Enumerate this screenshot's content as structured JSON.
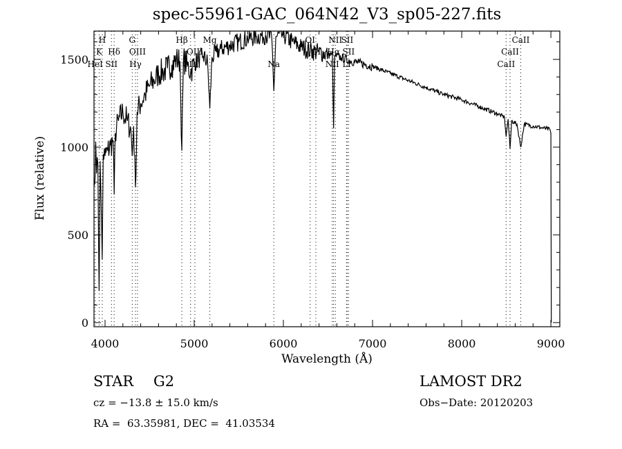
{
  "chart_data": {
    "type": "line",
    "title": "spec-55961-GAC_064N42_V3_sp05-227.fits",
    "xlabel": "Wavelength (Å)",
    "ylabel": "Flux (relative)",
    "xlim": [
      3876,
      9100
    ],
    "ylim": [
      0,
      1660
    ],
    "x_ticks": [
      4000,
      5000,
      6000,
      7000,
      8000,
      9000
    ],
    "y_ticks": [
      0,
      500,
      1000,
      1500
    ],
    "grid": false,
    "series": [
      {
        "name": "spectrum",
        "x": [
          3880,
          3895,
          3905,
          3920,
          3933,
          3945,
          3955,
          3968,
          3980,
          4000,
          4030,
          4060,
          4090,
          4102,
          4115,
          4150,
          4200,
          4250,
          4290,
          4305,
          4320,
          4341,
          4360,
          4400,
          4450,
          4500,
          4550,
          4600,
          4650,
          4700,
          4750,
          4800,
          4840,
          4861,
          4880,
          4920,
          4960,
          5000,
          5050,
          5100,
          5150,
          5175,
          5200,
          5250,
          5300,
          5400,
          5500,
          5600,
          5700,
          5800,
          5870,
          5893,
          5915,
          6000,
          6100,
          6200,
          6300,
          6400,
          6500,
          6550,
          6563,
          6575,
          6650,
          6750,
          6850,
          7000,
          7200,
          7400,
          7600,
          7800,
          8000,
          8200,
          8400,
          8480,
          8498,
          8520,
          8542,
          8560,
          8620,
          8662,
          8700,
          8800,
          8900,
          8990,
          9000,
          9005
        ],
        "y": [
          780,
          1030,
          850,
          900,
          180,
          920,
          700,
          360,
          960,
          950,
          980,
          1010,
          1040,
          730,
          1080,
          1150,
          1200,
          1150,
          1100,
          950,
          1120,
          770,
          1200,
          1250,
          1300,
          1350,
          1380,
          1420,
          1430,
          1450,
          1470,
          1500,
          1490,
          980,
          1500,
          1470,
          1430,
          1480,
          1500,
          1520,
          1480,
          1220,
          1510,
          1540,
          1560,
          1580,
          1600,
          1620,
          1630,
          1640,
          1620,
          1320,
          1630,
          1640,
          1600,
          1570,
          1550,
          1540,
          1530,
          1520,
          1110,
          1520,
          1510,
          1490,
          1480,
          1460,
          1420,
          1380,
          1340,
          1300,
          1270,
          1230,
          1190,
          1170,
          1060,
          1160,
          990,
          1150,
          1130,
          1000,
          1130,
          1120,
          1110,
          1100,
          1080,
          0
        ]
      }
    ],
    "line_markers": [
      {
        "label": "HeI",
        "wavelength": 3889,
        "row": 3
      },
      {
        "label": "K",
        "wavelength": 3934,
        "row": 2
      },
      {
        "label": "H",
        "wavelength": 3969,
        "row": 1
      },
      {
        "label": "SII",
        "wavelength": 4072,
        "row": 3
      },
      {
        "label": "Hδ",
        "wavelength": 4102,
        "row": 2
      },
      {
        "label": "G",
        "wavelength": 4305,
        "row": 1
      },
      {
        "label": "Hγ",
        "wavelength": 4341,
        "row": 3
      },
      {
        "label": "OIII",
        "wavelength": 4364,
        "row": 2
      },
      {
        "label": "Hβ",
        "wavelength": 4861,
        "row": 1
      },
      {
        "label": "OIII",
        "wavelength": 4959,
        "row": 3
      },
      {
        "label": "OIII",
        "wavelength": 5007,
        "row": 2
      },
      {
        "label": "Mg",
        "wavelength": 5175,
        "row": 1
      },
      {
        "label": "Na",
        "wavelength": 5893,
        "row": 3
      },
      {
        "label": "OI",
        "wavelength": 6300,
        "row": 1
      },
      {
        "label": "OI",
        "wavelength": 6364,
        "row": 2
      },
      {
        "label": "NII",
        "wavelength": 6548,
        "row": 3
      },
      {
        "label": "Hα",
        "wavelength": 6563,
        "row": 2
      },
      {
        "label": "NII",
        "wavelength": 6583,
        "row": 1
      },
      {
        "label": "Li",
        "wavelength": 6708,
        "row": 3
      },
      {
        "label": "SII",
        "wavelength": 6716,
        "row": 1
      },
      {
        "label": "SII",
        "wavelength": 6731,
        "row": 2
      },
      {
        "label": "CaII",
        "wavelength": 8498,
        "row": 3
      },
      {
        "label": "CaII",
        "wavelength": 8542,
        "row": 2
      },
      {
        "label": "CaII",
        "wavelength": 8662,
        "row": 1
      }
    ]
  },
  "info": {
    "object_class": "STAR",
    "subclass": "G2",
    "survey": "LAMOST DR2",
    "redshift_line": "cz = −13.8 ± 15.0 km/s",
    "obs_date_line": "Obs−Date: 20120203",
    "coords_line": "RA =  63.35981, DEC =  41.03534"
  }
}
